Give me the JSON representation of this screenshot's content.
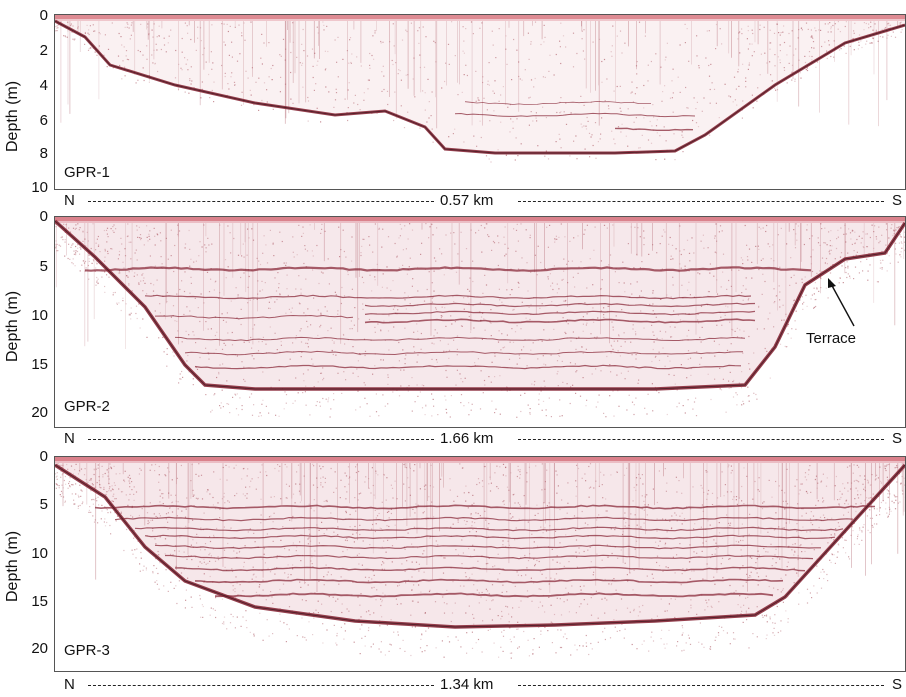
{
  "axis_label": "Depth (m)",
  "panels": [
    {
      "name": "GPR-1",
      "ticks": [
        "0",
        "2",
        "4",
        "6",
        "8",
        "10"
      ],
      "scale": {
        "north": "N",
        "south": "S",
        "distance": "0.57 km"
      }
    },
    {
      "name": "GPR-2",
      "ticks": [
        "0",
        "5",
        "10",
        "15",
        "20"
      ],
      "scale": {
        "north": "N",
        "south": "S",
        "distance": "1.66 km"
      },
      "annotation": "Terrace"
    },
    {
      "name": "GPR-3",
      "ticks": [
        "0",
        "5",
        "10",
        "15",
        "20"
      ],
      "scale": {
        "north": "N",
        "south": "S",
        "distance": "1.34 km"
      }
    }
  ],
  "colors": {
    "reflector": "#8a2a3a",
    "surface": "#c21e2e",
    "noise": "#b56a74"
  }
}
